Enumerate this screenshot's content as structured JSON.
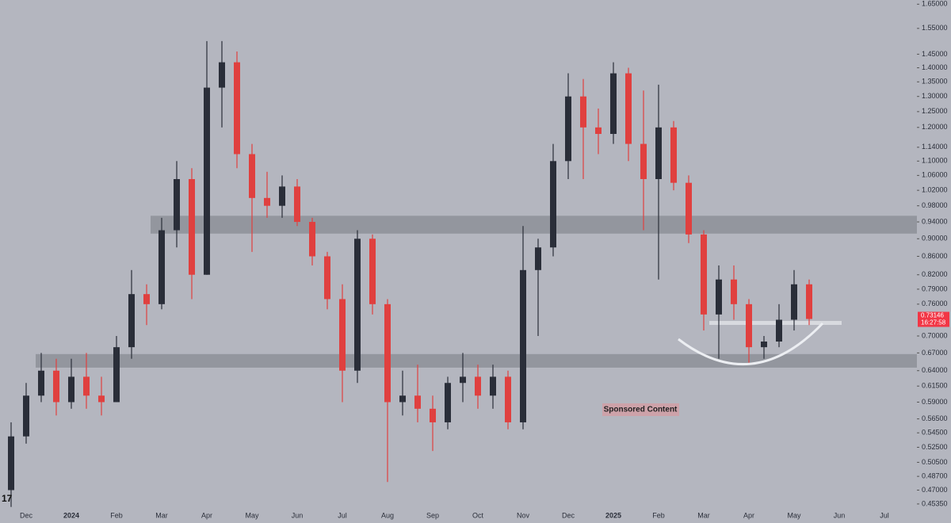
{
  "chart_data": {
    "type": "candlestick",
    "categories": [
      null,
      "Dec",
      null,
      null,
      "2024",
      null,
      null,
      "Feb",
      null,
      null,
      "Mar",
      null,
      null,
      "Apr",
      null,
      null,
      "May",
      null,
      null,
      "Jun",
      null,
      null,
      "Jul",
      null,
      null,
      "Aug",
      null,
      null,
      "Sep",
      null,
      null,
      "Oct",
      null,
      null,
      "Nov",
      null,
      null,
      "Dec",
      null,
      null,
      "2025",
      null,
      null,
      "Feb",
      null,
      null,
      "Mar",
      null,
      null,
      "Apr",
      null,
      null,
      "May",
      null,
      null,
      "Jun",
      null,
      null,
      "Jul"
    ],
    "open": [
      0.47,
      0.54,
      0.6,
      0.64,
      0.59,
      0.63,
      0.6,
      0.59,
      0.68,
      0.78,
      0.76,
      0.92,
      1.05,
      0.82,
      1.33,
      1.42,
      1.12,
      1.0,
      0.98,
      1.03,
      0.94,
      0.86,
      0.77,
      0.64,
      0.9,
      0.76,
      0.59,
      0.6,
      0.58,
      0.56,
      0.62,
      0.63,
      0.6,
      0.63,
      0.56,
      0.83,
      0.88,
      1.1,
      1.3,
      1.2,
      1.18,
      1.38,
      1.15,
      1.05,
      1.2,
      1.04,
      0.91,
      0.74,
      0.81,
      0.76,
      0.68,
      0.69,
      0.73,
      0.8,
      null,
      null,
      null,
      null,
      null
    ],
    "high": [
      0.56,
      0.62,
      0.67,
      0.66,
      0.66,
      0.67,
      0.63,
      0.7,
      0.83,
      0.8,
      0.95,
      1.1,
      1.08,
      1.5,
      1.5,
      1.46,
      1.15,
      1.07,
      1.06,
      1.05,
      0.95,
      0.87,
      0.8,
      0.92,
      0.91,
      0.77,
      0.64,
      0.65,
      0.6,
      0.63,
      0.67,
      0.65,
      0.65,
      0.64,
      0.93,
      0.9,
      1.15,
      1.38,
      1.36,
      1.26,
      1.42,
      1.4,
      1.32,
      1.34,
      1.22,
      1.06,
      0.92,
      0.84,
      0.84,
      0.77,
      0.7,
      0.76,
      0.83,
      0.81,
      null,
      null,
      null,
      null,
      null
    ],
    "low": [
      0.45,
      0.53,
      0.59,
      0.57,
      0.58,
      0.58,
      0.57,
      0.59,
      0.66,
      0.72,
      0.75,
      0.88,
      0.77,
      0.82,
      1.2,
      1.08,
      0.87,
      0.95,
      0.95,
      0.93,
      0.84,
      0.75,
      0.59,
      0.62,
      0.74,
      0.48,
      0.57,
      0.56,
      0.52,
      0.55,
      0.59,
      0.58,
      0.58,
      0.55,
      0.55,
      0.7,
      0.86,
      1.05,
      1.05,
      1.12,
      1.15,
      1.1,
      0.92,
      0.81,
      1.02,
      0.89,
      0.71,
      0.66,
      0.73,
      0.65,
      0.66,
      0.68,
      0.71,
      0.72,
      null,
      null,
      null,
      null,
      null
    ],
    "close": [
      0.54,
      0.6,
      0.64,
      0.59,
      0.63,
      0.6,
      0.59,
      0.68,
      0.78,
      0.76,
      0.92,
      1.05,
      0.82,
      1.33,
      1.42,
      1.12,
      1.0,
      0.98,
      1.03,
      0.94,
      0.86,
      0.77,
      0.64,
      0.9,
      0.76,
      0.59,
      0.6,
      0.58,
      0.56,
      0.62,
      0.63,
      0.6,
      0.63,
      0.56,
      0.83,
      0.88,
      1.1,
      1.3,
      1.2,
      1.18,
      1.38,
      1.15,
      1.05,
      1.2,
      1.04,
      0.91,
      0.74,
      0.81,
      0.76,
      0.68,
      0.69,
      0.73,
      0.8,
      0.73146,
      null,
      null,
      null,
      null,
      null
    ],
    "up_color": "#2a2e39",
    "down_color": "#e0403f",
    "ylog": true,
    "ylim": [
      0.447,
      1.668
    ],
    "yticks": [
      {
        "value": 1.65,
        "label": "1.65000"
      },
      {
        "value": 1.55,
        "label": "1.55000"
      },
      {
        "value": 1.45,
        "label": "1.45000"
      },
      {
        "value": 1.4,
        "label": "1.40000"
      },
      {
        "value": 1.35,
        "label": "1.35000"
      },
      {
        "value": 1.3,
        "label": "1.30000"
      },
      {
        "value": 1.25,
        "label": "1.25000"
      },
      {
        "value": 1.2,
        "label": "1.20000"
      },
      {
        "value": 1.14,
        "label": "1.14000"
      },
      {
        "value": 1.1,
        "label": "1.10000"
      },
      {
        "value": 1.06,
        "label": "1.06000"
      },
      {
        "value": 1.02,
        "label": "1.02000"
      },
      {
        "value": 0.98,
        "label": "0.98000"
      },
      {
        "value": 0.94,
        "label": "0.94000"
      },
      {
        "value": 0.9,
        "label": "0.90000"
      },
      {
        "value": 0.86,
        "label": "0.86000"
      },
      {
        "value": 0.82,
        "label": "0.82000"
      },
      {
        "value": 0.79,
        "label": "0.79000"
      },
      {
        "value": 0.76,
        "label": "0.76000"
      },
      {
        "value": 0.7,
        "label": "0.70000"
      },
      {
        "value": 0.67,
        "label": "0.67000"
      },
      {
        "value": 0.64,
        "label": "0.64000"
      },
      {
        "value": 0.615,
        "label": "0.61500"
      },
      {
        "value": 0.59,
        "label": "0.59000"
      },
      {
        "value": 0.565,
        "label": "0.56500"
      },
      {
        "value": 0.545,
        "label": "0.54500"
      },
      {
        "value": 0.525,
        "label": "0.52500"
      },
      {
        "value": 0.505,
        "label": "0.50500"
      },
      {
        "value": 0.487,
        "label": "0.48700"
      },
      {
        "value": 0.47,
        "label": "0.47000"
      },
      {
        "value": 0.4535,
        "label": "0.45350"
      }
    ],
    "zones": [
      {
        "from": 0.912,
        "to": 0.955
      },
      {
        "from": 0.645,
        "to": 0.668
      }
    ],
    "level": 0.724,
    "last_price": {
      "value": 0.73146,
      "label": "0.73146"
    },
    "countdown": "16:27:58",
    "annotation": "Sponsored Content",
    "logo": "17"
  }
}
